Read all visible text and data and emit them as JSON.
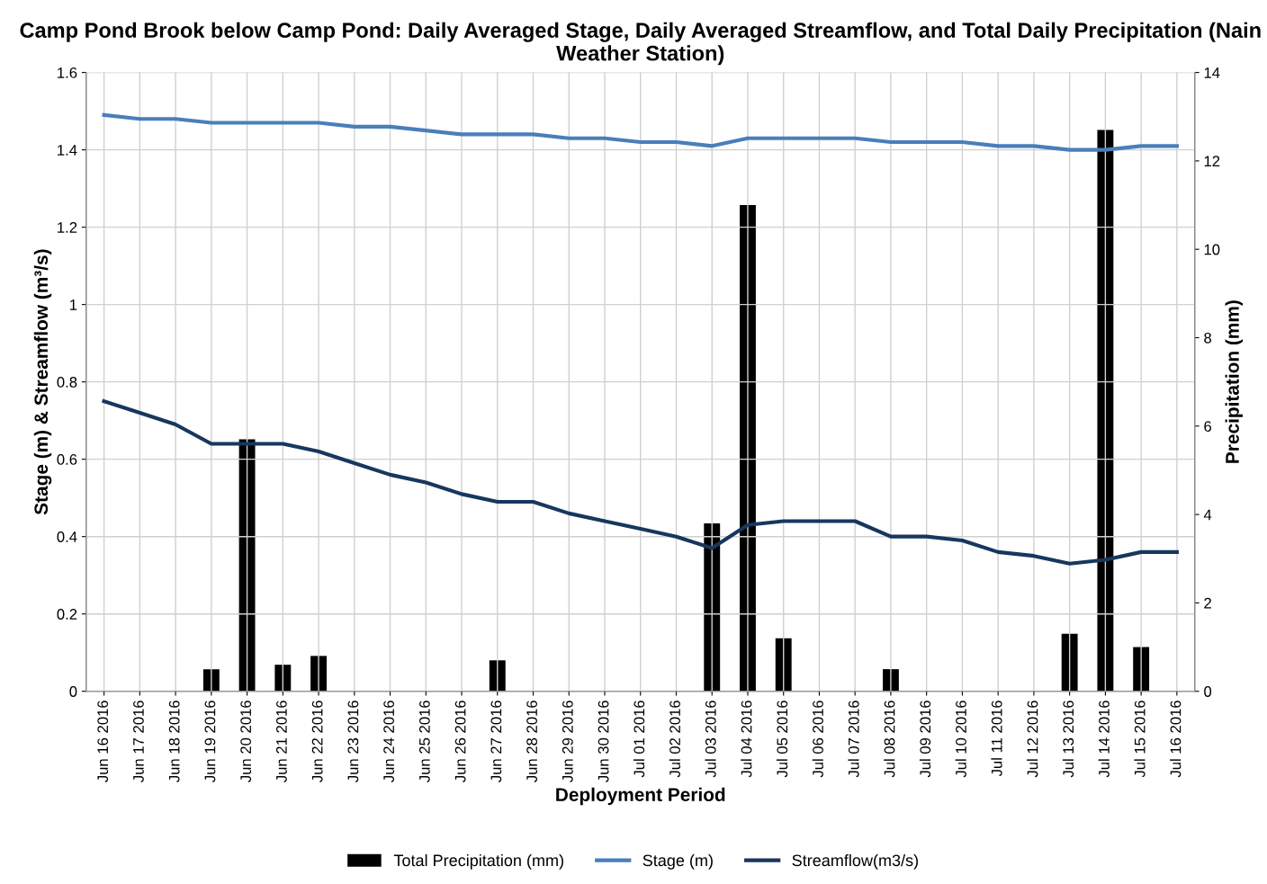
{
  "chart_data": {
    "type": "line",
    "title": "Camp Pond Brook below Camp Pond: Daily Averaged Stage, Daily Averaged Streamflow, and Total Daily Precipitation (Nain Weather Station)",
    "xlabel": "Deployment Period",
    "ylabel": "Stage (m) & Streamflow (m³/s)",
    "y2label": "Precipitation (mm)",
    "categories": [
      "Jun 16 2016",
      "Jun 17 2016",
      "Jun 18 2016",
      "Jun 19 2016",
      "Jun 20 2016",
      "Jun 21 2016",
      "Jun 22 2016",
      "Jun 23 2016",
      "Jun 24 2016",
      "Jun 25 2016",
      "Jun 26 2016",
      "Jun 27 2016",
      "Jun 28 2016",
      "Jun 29 2016",
      "Jun 30 2016",
      "Jul 01 2016",
      "Jul 02 2016",
      "Jul 03 2016",
      "Jul 04 2016",
      "Jul 05 2016",
      "Jul 06 2016",
      "Jul 07 2016",
      "Jul 08 2016",
      "Jul 09 2016",
      "Jul 10 2016",
      "Jul 11 2016",
      "Jul 12 2016",
      "Jul 13 2016",
      "Jul 14 2016",
      "Jul 15 2016",
      "Jul 16 2016"
    ],
    "series": [
      {
        "name": "Total Precipitation (mm)",
        "type": "bar",
        "axis": "y2",
        "color": "#000000",
        "values": [
          0,
          0,
          0,
          0.5,
          5.7,
          0.6,
          0.8,
          0,
          0,
          0,
          0,
          0.7,
          0,
          0,
          0,
          0,
          0,
          3.8,
          11.0,
          1.2,
          0,
          0,
          0.5,
          0,
          0,
          0,
          0,
          1.3,
          12.7,
          1.0,
          0
        ]
      },
      {
        "name": "Stage (m)",
        "color": "#4a7ebb",
        "values": [
          1.49,
          1.48,
          1.48,
          1.47,
          1.47,
          1.47,
          1.47,
          1.46,
          1.46,
          1.45,
          1.44,
          1.44,
          1.44,
          1.43,
          1.43,
          1.42,
          1.42,
          1.41,
          1.43,
          1.43,
          1.43,
          1.43,
          1.42,
          1.42,
          1.42,
          1.41,
          1.41,
          1.4,
          1.4,
          1.41,
          1.41
        ]
      },
      {
        "name": "Streamflow(m3/s)",
        "color": "#17375e",
        "values": [
          0.75,
          0.72,
          0.69,
          0.64,
          0.64,
          0.64,
          0.62,
          0.59,
          0.56,
          0.54,
          0.51,
          0.49,
          0.49,
          0.46,
          0.44,
          0.42,
          0.4,
          0.37,
          0.43,
          0.44,
          0.44,
          0.44,
          0.4,
          0.4,
          0.39,
          0.36,
          0.35,
          0.33,
          0.34,
          0.36,
          0.36
        ]
      }
    ],
    "ylim": [
      0,
      1.6
    ],
    "yticks": [
      0,
      0.2,
      0.4,
      0.6,
      0.8,
      1,
      1.2,
      1.4,
      1.6
    ],
    "y2lim": [
      0,
      14
    ],
    "y2ticks": [
      0,
      2,
      4,
      6,
      8,
      10,
      12,
      14
    ],
    "grid": true,
    "legend": "bottom",
    "marker": "none",
    "line_style": "solid"
  }
}
